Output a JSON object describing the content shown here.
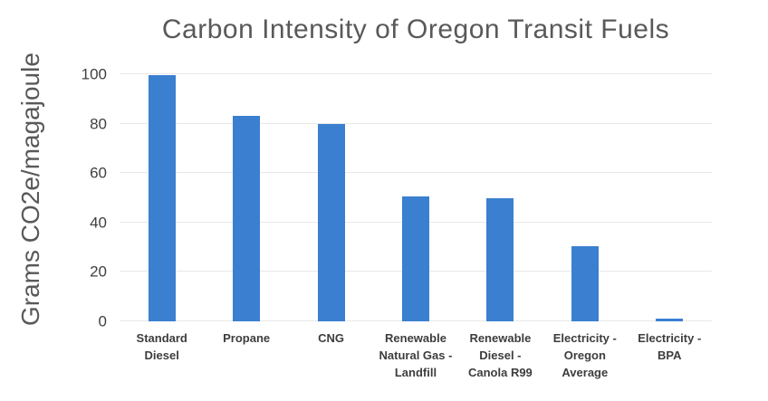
{
  "chart_data": {
    "type": "bar",
    "title": "Carbon Intensity of Oregon Transit Fuels",
    "ylabel": "Grams CO2e/magajoule",
    "xlabel": "",
    "categories": [
      "Standard Diesel",
      "Propane",
      "CNG",
      "Renewable Natural Gas - Landfill",
      "Renewable Diesel - Canola R99",
      "Electricity - Oregon Average",
      "Electricity - BPA"
    ],
    "values": [
      99.5,
      83,
      80,
      50.5,
      50,
      30.5,
      1
    ],
    "yticks": [
      0,
      20,
      40,
      60,
      80,
      100
    ],
    "ylim": [
      0,
      100
    ],
    "grid": true,
    "legend_position": "none",
    "colors": {
      "bar": "#3a7fd0",
      "gridline": "#e8e8e8",
      "title_text": "#595959",
      "axis_title_text": "#595959",
      "tick_text": "#404040",
      "category_text": "#3d3d3d",
      "background": "#ffffff"
    }
  }
}
